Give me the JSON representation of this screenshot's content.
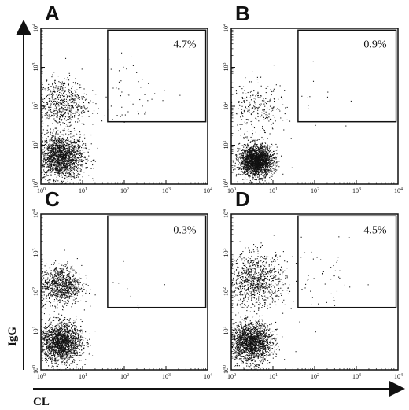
{
  "chart_data": {
    "type": "scatter",
    "xlabel": "CL",
    "ylabel": "IgG",
    "xscale": "log",
    "yscale": "log",
    "xlim": [
      1,
      10000
    ],
    "ylim": [
      1,
      10000
    ],
    "tick_base": "10",
    "tick_exponents": [
      "0",
      "1",
      "2",
      "3",
      "4"
    ],
    "panels": [
      {
        "label": "A",
        "gate": {
          "x": [
            40,
            9000
          ],
          "y": [
            40,
            9000
          ],
          "percent": "4.7%"
        },
        "populations": [
          {
            "x_center": 3,
            "y_center": 5,
            "spread": 0.28,
            "count": 1800
          },
          {
            "x_center": 3,
            "y_center": 120,
            "spread": 0.32,
            "count": 650
          },
          {
            "x_center": 150,
            "y_center": 250,
            "spread": 0.45,
            "count": 50
          }
        ]
      },
      {
        "label": "B",
        "gate": {
          "x": [
            40,
            9000
          ],
          "y": [
            40,
            9000
          ],
          "percent": "0.9%"
        },
        "populations": [
          {
            "x_center": 4,
            "y_center": 4,
            "spread": 0.2,
            "count": 2200
          },
          {
            "x_center": 4,
            "y_center": 80,
            "spread": 0.35,
            "count": 280
          },
          {
            "x_center": 150,
            "y_center": 150,
            "spread": 0.45,
            "count": 10
          }
        ]
      },
      {
        "label": "C",
        "gate": {
          "x": [
            40,
            9000
          ],
          "y": [
            40,
            9000
          ],
          "percent": "0.3%"
        },
        "populations": [
          {
            "x_center": 3,
            "y_center": 5,
            "spread": 0.25,
            "count": 1800
          },
          {
            "x_center": 3,
            "y_center": 150,
            "spread": 0.25,
            "count": 900
          },
          {
            "x_center": 150,
            "y_center": 150,
            "spread": 0.45,
            "count": 8
          }
        ]
      },
      {
        "label": "D",
        "gate": {
          "x": [
            40,
            9000
          ],
          "y": [
            40,
            9000
          ],
          "percent": "4.5%"
        },
        "populations": [
          {
            "x_center": 3,
            "y_center": 5,
            "spread": 0.25,
            "count": 1800
          },
          {
            "x_center": 4,
            "y_center": 200,
            "spread": 0.35,
            "count": 900
          },
          {
            "x_center": 150,
            "y_center": 200,
            "spread": 0.45,
            "count": 50
          }
        ]
      }
    ]
  }
}
